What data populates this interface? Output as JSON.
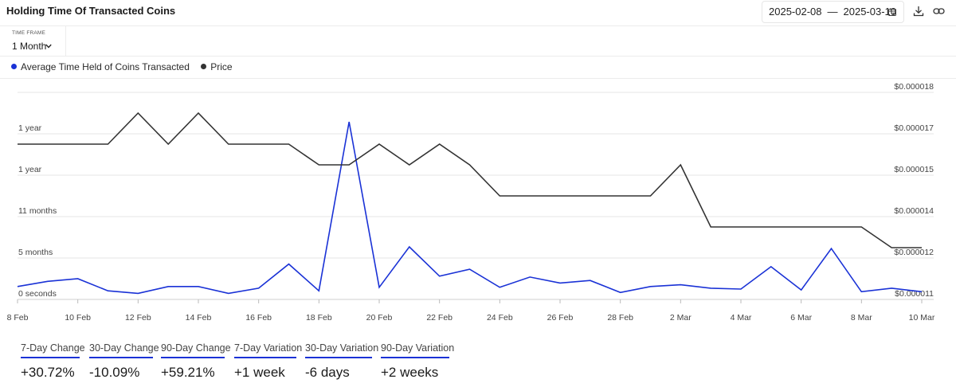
{
  "header": {
    "title": "Holding Time Of Transacted Coins",
    "date_start": "2025-02-08",
    "date_sep": "—",
    "date_end": "2025-03-10",
    "icons": [
      "calendar-icon",
      "download-icon",
      "link-icon"
    ]
  },
  "timeframe": {
    "label": "TIME FRAME",
    "value": "1 Month"
  },
  "legend": [
    {
      "label": "Average Time Held of Coins Transacted",
      "color": "#1a32d6"
    },
    {
      "label": "Price",
      "color": "#333333"
    }
  ],
  "chart_data": {
    "type": "line",
    "x_tick_labels": [
      "8 Feb",
      "10 Feb",
      "12 Feb",
      "14 Feb",
      "16 Feb",
      "18 Feb",
      "20 Feb",
      "22 Feb",
      "24 Feb",
      "26 Feb",
      "28 Feb",
      "2 Mar",
      "4 Mar",
      "6 Mar",
      "8 Mar",
      "10 Mar"
    ],
    "x": [
      "2025-02-08",
      "2025-02-09",
      "2025-02-10",
      "2025-02-11",
      "2025-02-12",
      "2025-02-13",
      "2025-02-14",
      "2025-02-15",
      "2025-02-16",
      "2025-02-17",
      "2025-02-18",
      "2025-02-19",
      "2025-02-20",
      "2025-02-21",
      "2025-02-22",
      "2025-02-23",
      "2025-02-24",
      "2025-02-25",
      "2025-02-26",
      "2025-02-27",
      "2025-02-28",
      "2025-03-01",
      "2025-03-02",
      "2025-03-03",
      "2025-03-04",
      "2025-03-05",
      "2025-03-06",
      "2025-03-07",
      "2025-03-08",
      "2025-03-09",
      "2025-03-10"
    ],
    "left_axis_labels": [
      "0 seconds",
      "5 months",
      "11 months",
      "1 year",
      "1 year"
    ],
    "right_axis_labels": [
      "$0.000011",
      "$0.000012",
      "$0.000014",
      "$0.000015",
      "$0.000017",
      "$0.000018"
    ],
    "right_axis_values": [
      1.1e-05,
      1.2e-05,
      1.4e-05,
      1.5e-05,
      1.7e-05,
      1.8e-05
    ],
    "left_ylim_months": [
      0,
      21.8
    ],
    "series": [
      {
        "name": "Average Time Held of Coins Transacted",
        "axis": "left",
        "unit": "months",
        "color": "#1a32d6",
        "values": [
          1.5,
          2.1,
          2.4,
          1.0,
          0.7,
          1.5,
          1.5,
          0.7,
          1.3,
          4.1,
          1.0,
          20.6,
          1.4,
          6.1,
          2.7,
          3.5,
          1.4,
          2.6,
          1.9,
          2.2,
          0.8,
          1.5,
          1.7,
          1.3,
          1.2,
          3.8,
          1.1,
          5.9,
          0.9,
          1.3,
          0.9
        ]
      },
      {
        "name": "Price",
        "axis": "right",
        "color": "#333333",
        "values": [
          1.65e-05,
          1.65e-05,
          1.65e-05,
          1.65e-05,
          1.75e-05,
          1.65e-05,
          1.75e-05,
          1.65e-05,
          1.65e-05,
          1.65e-05,
          1.55e-05,
          1.55e-05,
          1.65e-05,
          1.55e-05,
          1.65e-05,
          1.55e-05,
          1.45e-05,
          1.45e-05,
          1.45e-05,
          1.45e-05,
          1.45e-05,
          1.45e-05,
          1.55e-05,
          1.35e-05,
          1.35e-05,
          1.35e-05,
          1.35e-05,
          1.35e-05,
          1.35e-05,
          1.25e-05,
          1.25e-05
        ]
      }
    ],
    "grid": true,
    "legend_position": "top-left"
  },
  "stats": [
    {
      "label": "7-Day Change",
      "value": "+30.72%"
    },
    {
      "label": "30-Day Change",
      "value": "-10.09%"
    },
    {
      "label": "90-Day Change",
      "value": "+59.21%"
    },
    {
      "label": "7-Day Variation",
      "value": "+1 week"
    },
    {
      "label": "30-Day Variation",
      "value": "-6 days"
    },
    {
      "label": "90-Day Variation",
      "value": "+2 weeks"
    }
  ]
}
